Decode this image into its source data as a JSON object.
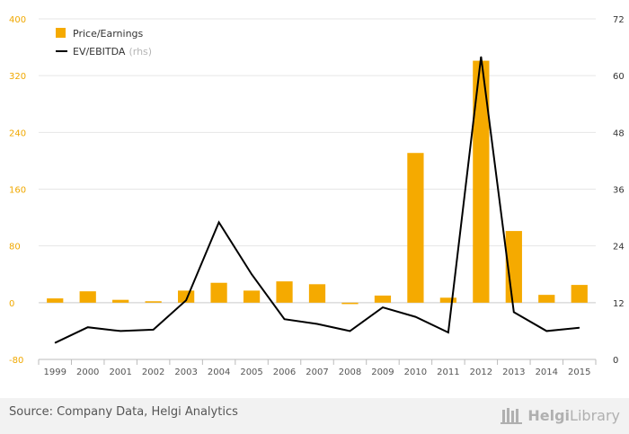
{
  "chart_data": {
    "type": "bar+line",
    "categories": [
      "1999",
      "2000",
      "2001",
      "2002",
      "2003",
      "2004",
      "2005",
      "2006",
      "2007",
      "2008",
      "2009",
      "2010",
      "2011",
      "2012",
      "2013",
      "2014",
      "2015"
    ],
    "series": [
      {
        "name": "Price/Earnings",
        "type": "bar",
        "axis": "left",
        "color": "#f5aa00",
        "values": [
          6,
          16,
          4,
          2,
          17,
          28,
          17,
          30,
          26,
          -2,
          10,
          211,
          7,
          341,
          101,
          11,
          25
        ]
      },
      {
        "name": "EV/EBITDA",
        "name_note": "(rhs)",
        "type": "line",
        "axis": "right",
        "color": "#000000",
        "values": [
          3.5,
          6.8,
          6.0,
          6.3,
          12.5,
          29.0,
          18.0,
          8.5,
          7.5,
          6.0,
          11.0,
          9.0,
          5.7,
          64.0,
          10.0,
          6.0,
          6.7
        ]
      }
    ],
    "left_axis": {
      "ylim": [
        -80,
        400
      ],
      "ticks": [
        "-80",
        "0",
        "80",
        "160",
        "240",
        "320",
        "400"
      ],
      "color": "#f0a800"
    },
    "right_axis": {
      "ylim": [
        0,
        72
      ],
      "ticks": [
        "0",
        "12",
        "24",
        "36",
        "48",
        "60",
        "72"
      ],
      "color": "#333333"
    },
    "grid": true,
    "legend_position": "top-left"
  },
  "footer": {
    "source": "Source: Company Data, Helgi Analytics",
    "logo_part1": "Helgi",
    "logo_part2": "Library",
    "logo_icon": "library-icon"
  }
}
